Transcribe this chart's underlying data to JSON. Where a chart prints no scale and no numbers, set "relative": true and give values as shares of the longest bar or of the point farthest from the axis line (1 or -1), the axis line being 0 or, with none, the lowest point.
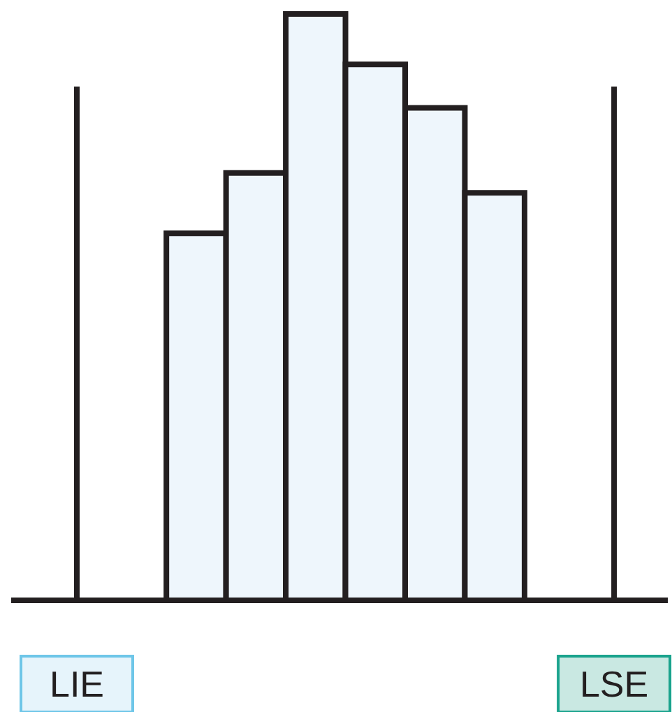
{
  "chart_data": {
    "type": "bar",
    "relative": true,
    "categories": [
      null,
      null,
      null,
      null,
      null,
      null
    ],
    "values": [
      0.626,
      0.729,
      1,
      0.914,
      0.84,
      0.695
    ],
    "color": "#eef6fc",
    "annotations": [
      "LIE",
      "LSE"
    ]
  }
}
